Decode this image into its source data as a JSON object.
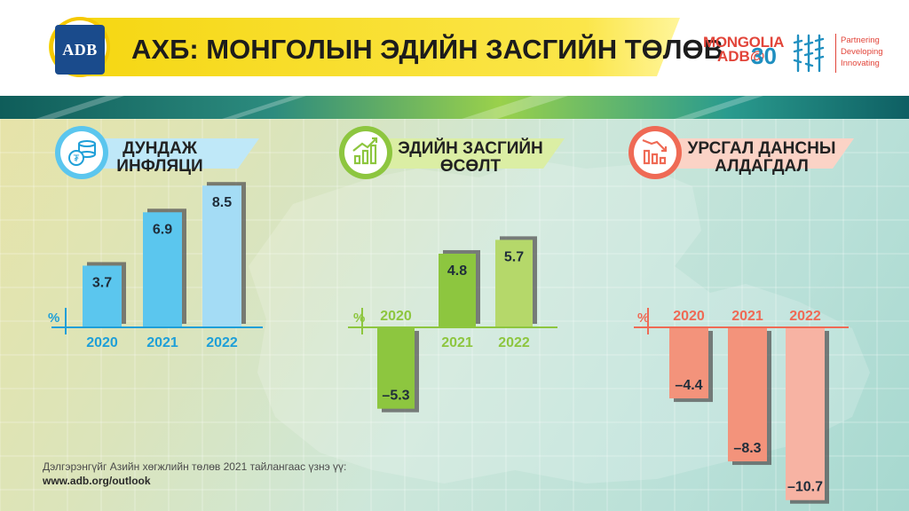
{
  "header": {
    "logo_text": "ADB",
    "title": "АХБ: МОНГОЛЫН ЭДИЙН ЗАСГИЙН ТӨЛӨВ",
    "brand_line1": "MONGOLIA",
    "brand_line2": "ADB@",
    "brand_number": "30",
    "tagline": [
      "Partnering",
      "Developing",
      "Innovating"
    ]
  },
  "footer": {
    "note": "Дэлгэрэнгүйг Азийн хөгжлийн төлөв 2021 тайлангаас үзнэ үү:",
    "link": "www.adb.org/outlook"
  },
  "colors": {
    "inflation": "#5bc6ee",
    "inflation_light": "#a4dcf5",
    "growth": "#8dc63f",
    "growth_light": "#b5d86a",
    "account": "#f3937b",
    "account_light": "#f7b3a3",
    "axis_blue": "#1e9fd8",
    "axis_green": "#8dc63f",
    "axis_red": "#ef6a55"
  },
  "chart_data": [
    {
      "type": "bar",
      "title": "ДУНДАЖ ИНФЛЯЦИ",
      "icon": "coins-icon",
      "ylabel": "%",
      "categories": [
        "2020",
        "2021",
        "2022"
      ],
      "values": [
        3.7,
        6.9,
        8.5
      ],
      "value_labels": [
        "3.7",
        "6.9",
        "8.5"
      ]
    },
    {
      "type": "bar",
      "title": "ЭДИЙН ЗАСГИЙН ӨСӨЛТ",
      "icon": "growth-chart-icon",
      "ylabel": "%",
      "categories": [
        "2020",
        "2021",
        "2022"
      ],
      "values": [
        -5.3,
        4.8,
        5.7
      ],
      "value_labels": [
        "–5.3",
        "4.8",
        "5.7"
      ]
    },
    {
      "type": "bar",
      "title": "УРСГАЛ ДАНСНЫ АЛДАГДАЛ",
      "icon": "declining-chart-icon",
      "ylabel": "%",
      "categories": [
        "2020",
        "2021",
        "2022"
      ],
      "values": [
        -4.4,
        -8.3,
        -10.7
      ],
      "value_labels": [
        "–4.4",
        "–8.3",
        "–10.7"
      ]
    }
  ]
}
